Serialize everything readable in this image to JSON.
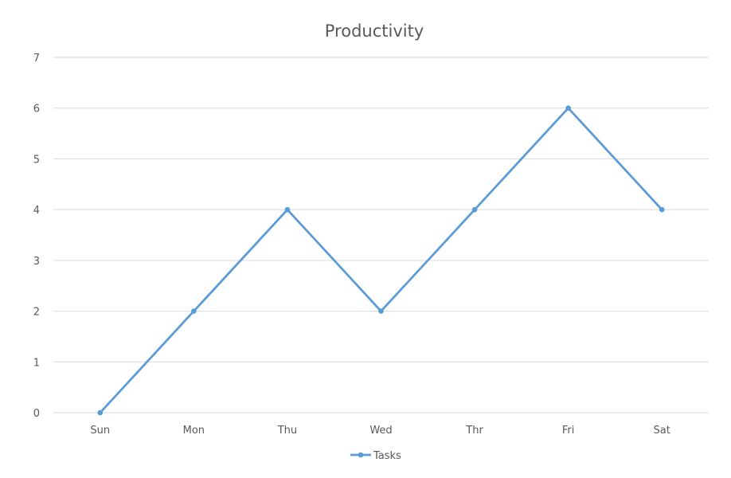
{
  "chart_data": {
    "type": "line",
    "title": "Productivity",
    "categories": [
      "Sun",
      "Mon",
      "Thu",
      "Wed",
      "Thr",
      "Fri",
      "Sat"
    ],
    "series": [
      {
        "name": "Tasks",
        "values": [
          0,
          2,
          4,
          2,
          4,
          6,
          4
        ],
        "color": "#5b9bd5"
      }
    ],
    "ylim": [
      0,
      7
    ],
    "yticks": [
      0,
      1,
      2,
      3,
      4,
      5,
      6,
      7
    ],
    "grid": true,
    "legend": "bottom",
    "xlabel": "",
    "ylabel": ""
  }
}
